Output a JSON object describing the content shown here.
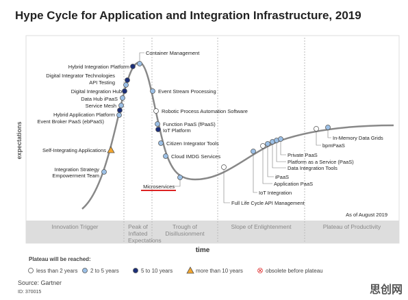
{
  "title": "Hype Cycle for Application and Integration Infrastructure, 2019",
  "y_axis_label": "expectations",
  "x_axis_label": "time",
  "as_of": "As of August 2019",
  "phases": [
    "Innovation Trigger",
    "Peak of Inflated Expectations",
    "Trough of Disillusionment",
    "Slope of Enlightenment",
    "Plateau of Productivity"
  ],
  "nodes": [
    {
      "label": "Container Management",
      "plateau": "2 to 5 years"
    },
    {
      "label": "Hybrid Integration Platform",
      "plateau": "5 to 10 years"
    },
    {
      "label": "Digital Integrator Technologies",
      "plateau": "5 to 10 years"
    },
    {
      "label": "API Testing",
      "plateau": "2 to 5 years"
    },
    {
      "label": "Digital Integration Hub",
      "plateau": "5 to 10 years"
    },
    {
      "label": "Data Hub iPaaS",
      "plateau": "2 to 5 years"
    },
    {
      "label": "Service Mesh",
      "plateau": "2 to 5 years"
    },
    {
      "label": "Hybrid Application Platform",
      "plateau": "5 to 10 years"
    },
    {
      "label": "Event Broker PaaS (ebPaaS)",
      "plateau": "2 to 5 years"
    },
    {
      "label": "Event Stream Processing",
      "plateau": "2 to 5 years"
    },
    {
      "label": "Robotic Process Automation Software",
      "plateau": "less than 2 years"
    },
    {
      "label": "Function PaaS (fPaaS)",
      "plateau": "2 to 5 years"
    },
    {
      "label": "IoT Platform",
      "plateau": "5 to 10 years"
    },
    {
      "label": "Citizen Integrator Tools",
      "plateau": "2 to 5 years"
    },
    {
      "label": "Cloud IMDG Services",
      "plateau": "2 to 5 years"
    },
    {
      "label": "Microservices",
      "plateau": "2 to 5 years"
    },
    {
      "label": "Self-Integrating Applications",
      "plateau": "more than 10 years"
    },
    {
      "label": "Integration Strategy Empowerment Team",
      "plateau": "2 to 5 years"
    },
    {
      "label": "Full Life Cycle API Management",
      "plateau": "less than 2 years"
    },
    {
      "label": "IoT Integration",
      "plateau": "2 to 5 years"
    },
    {
      "label": "Application PaaS",
      "plateau": "less than 2 years"
    },
    {
      "label": "iPaaS",
      "plateau": "2 to 5 years"
    },
    {
      "label": "Data Integration Tools",
      "plateau": "2 to 5 years"
    },
    {
      "label": "Platform as a Service (PaaS)",
      "plateau": "2 to 5 years"
    },
    {
      "label": "Private PaaS",
      "plateau": "2 to 5 years"
    },
    {
      "label": "bpmPaaS",
      "plateau": "less than 2 years"
    },
    {
      "label": "In-Memory Data Grids",
      "plateau": "2 to 5 years"
    }
  ],
  "legend": {
    "title": "Plateau will be reached:",
    "items": [
      {
        "label": "less than 2 years",
        "marker": "circle",
        "color": "#ffffff"
      },
      {
        "label": "2 to 5 years",
        "marker": "circle",
        "color": "#9cc0e6"
      },
      {
        "label": "5 to 10 years",
        "marker": "circle",
        "color": "#1c2f78"
      },
      {
        "label": "more than 10 years",
        "marker": "triangle",
        "color": "#f2a52e"
      },
      {
        "label": "obsolete before plateau",
        "marker": "cross",
        "color": "#e03a3a"
      }
    ]
  },
  "source": "Source: Gartner",
  "id": "ID: 370015",
  "watermark": "思创网"
}
